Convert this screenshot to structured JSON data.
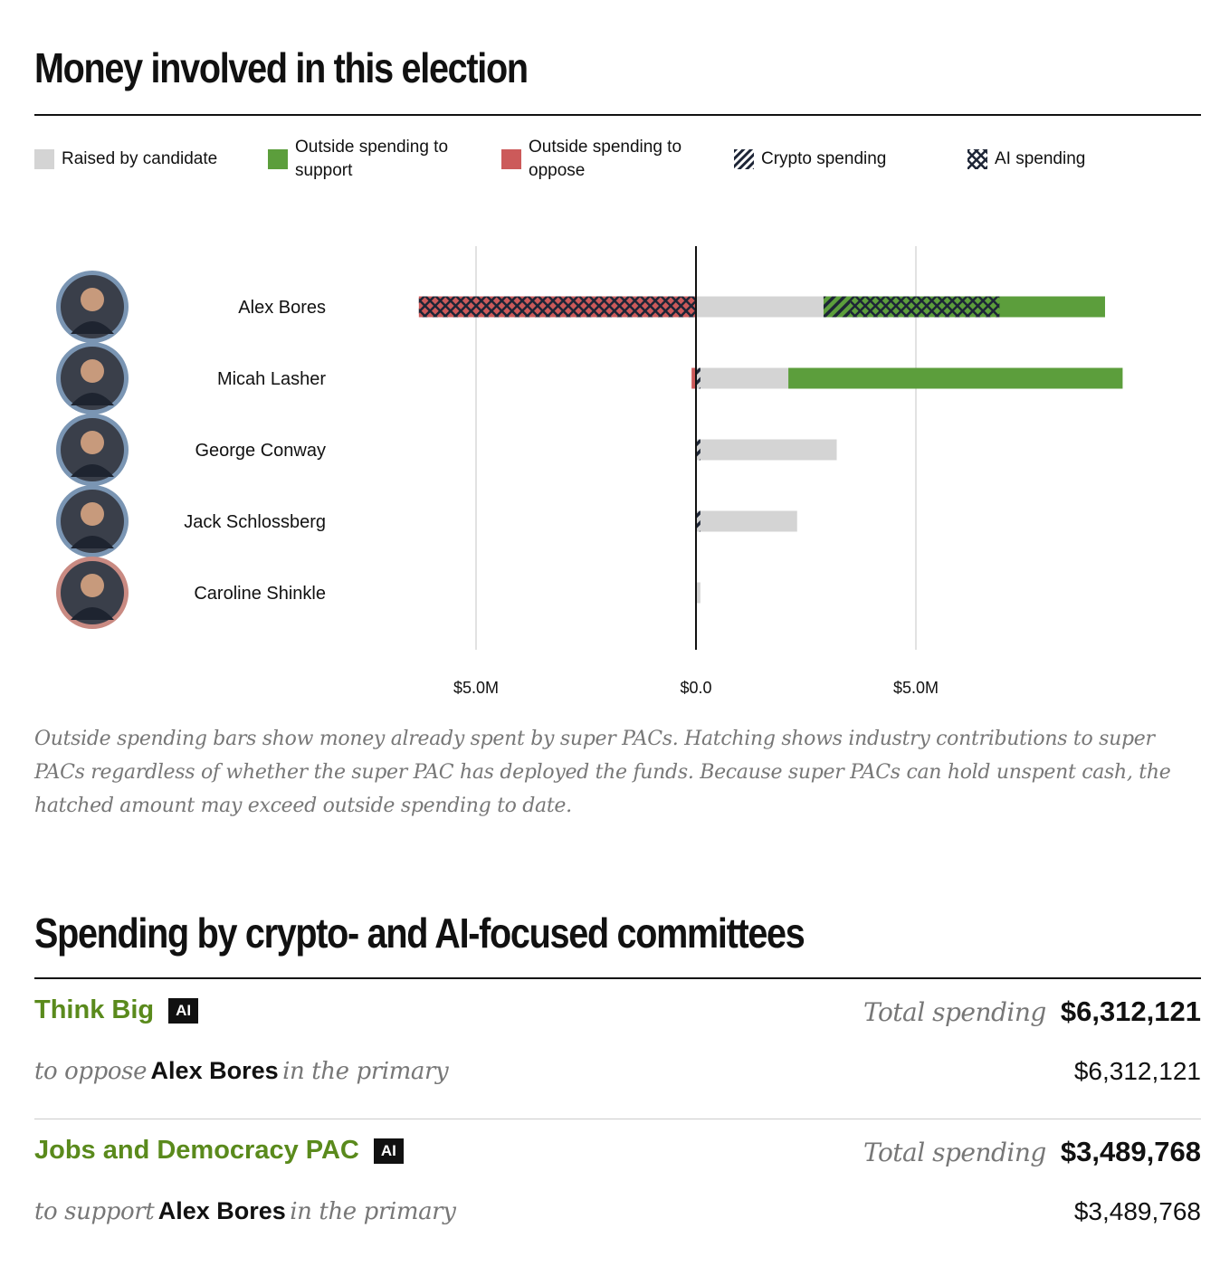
{
  "section1": {
    "title": "Money involved in this election"
  },
  "legend": [
    {
      "label": "Raised by candidate",
      "swatch": "raised"
    },
    {
      "label": "Outside spending to support",
      "swatch": "support"
    },
    {
      "label": "Outside spending to oppose",
      "swatch": "oppose"
    },
    {
      "label": "Crypto spending",
      "swatch": "crypto"
    },
    {
      "label": "AI spending",
      "swatch": "ai"
    }
  ],
  "colors": {
    "raised": "#d4d4d4",
    "support": "#5c9e3c",
    "oppose": "#cc5a5a",
    "hatch": "#1d2536",
    "avatar_ring_default": "#7a95b3",
    "avatar_ring_caroline": "#c98a82"
  },
  "chart_data": {
    "type": "bar",
    "orientation": "horizontal-diverging",
    "units": "USD millions",
    "x_ticks": [
      {
        "value": -5,
        "label": "$5.0M"
      },
      {
        "value": 0,
        "label": "$0.0"
      },
      {
        "value": 5,
        "label": "$5.0M"
      }
    ],
    "xlim": [
      -7.5,
      5.9
    ],
    "grid": true,
    "legend_position": "top",
    "candidates": [
      {
        "name": "Alex Bores",
        "avatar": "photo-alex-bores",
        "raised": 2.9,
        "support": 9.3,
        "oppose": 6.3,
        "hatch_oppose": [
          {
            "kind": "ai",
            "from": 0,
            "to": 6.3
          }
        ],
        "hatch_support": [
          {
            "kind": "crypto",
            "from": 2.9,
            "to": 3.5
          },
          {
            "kind": "ai",
            "from": 3.5,
            "to": 6.9
          }
        ]
      },
      {
        "name": "Micah Lasher",
        "avatar": "photo-micah-lasher",
        "raised": 2.1,
        "support": 9.7,
        "oppose": 0.1,
        "hatch_oppose": [],
        "hatch_support": [
          {
            "kind": "crypto",
            "from": 0,
            "to": 0.1
          }
        ]
      },
      {
        "name": "George Conway",
        "avatar": "photo-george-conway",
        "raised": 3.2,
        "support": 0,
        "oppose": 0,
        "hatch_oppose": [],
        "hatch_support": [
          {
            "kind": "crypto",
            "from": 0,
            "to": 0.1
          }
        ]
      },
      {
        "name": "Jack Schlossberg",
        "avatar": "photo-jack-schlossberg",
        "raised": 2.3,
        "support": 0,
        "oppose": 0,
        "hatch_oppose": [],
        "hatch_support": [
          {
            "kind": "crypto",
            "from": 0,
            "to": 0.1
          }
        ]
      },
      {
        "name": "Caroline Shinkle",
        "avatar": "photo-caroline-shinkle",
        "raised": 0.1,
        "support": 0,
        "oppose": 0,
        "hatch_oppose": [],
        "hatch_support": []
      }
    ]
  },
  "note": "Outside spending bars show money already spent by super PACs. Hatching shows industry contributions to super PACs regardless of whether the super PAC has deployed the funds. Because super PACs can hold unspent cash, the hatched amount may exceed outside spending to date.",
  "section2": {
    "title": "Spending by crypto- and AI-focused committees"
  },
  "committees": [
    {
      "name": "Think Big",
      "badge": "AI",
      "total_label": "Total spending",
      "total": "$6,312,121",
      "line_prefix": "to oppose",
      "candidate": "Alex Bores",
      "line_suffix": "in the primary",
      "amount": "$6,312,121"
    },
    {
      "name": "Jobs and Democracy PAC",
      "badge": "AI",
      "total_label": "Total spending",
      "total": "$3,489,768",
      "line_prefix": "to support",
      "candidate": "Alex Bores",
      "line_suffix": "in the primary",
      "amount": "$3,489,768"
    }
  ]
}
